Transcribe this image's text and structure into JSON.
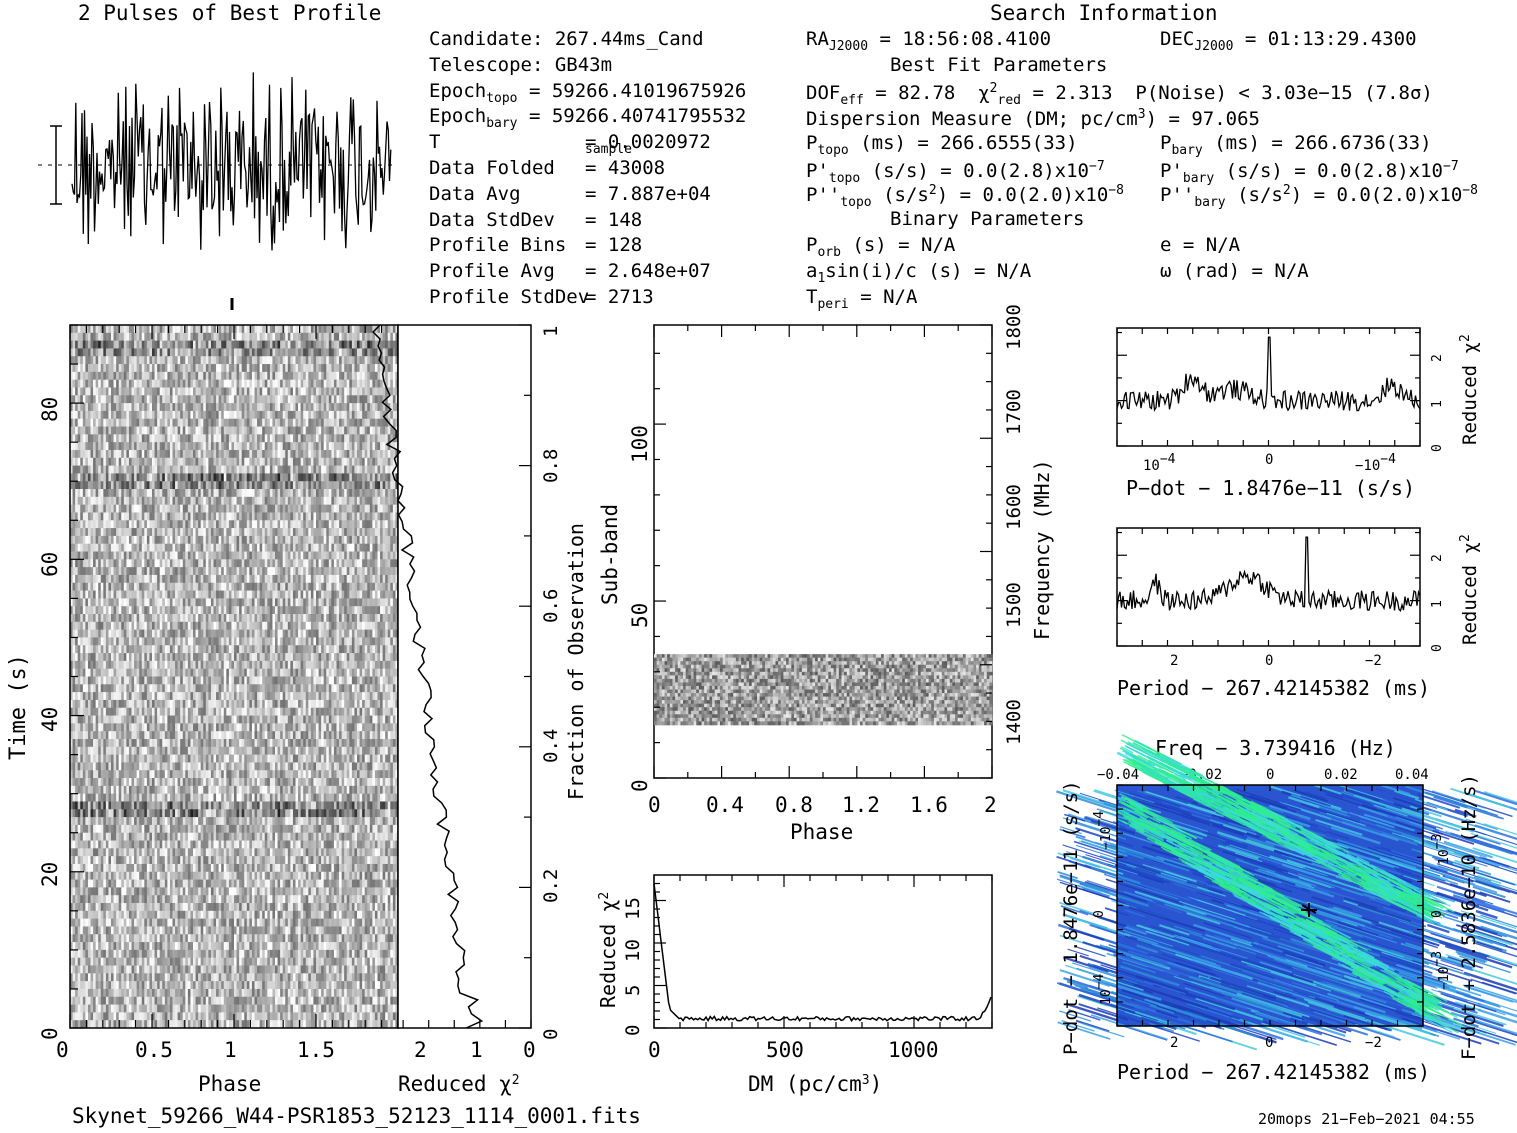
{
  "title_profile": "2 Pulses of Best Profile",
  "title_search": "Search Information",
  "candidate": {
    "rows": [
      {
        "label": "Candidate:",
        "value": "267.44ms_Cand"
      },
      {
        "label": "Telescope:",
        "value": "GB43m"
      },
      {
        "label": "Epoch",
        "sub": "topo",
        "value": "= 59266.41019675926"
      },
      {
        "label": "Epoch",
        "sub": "bary",
        "value": "= 59266.40741795532"
      },
      {
        "label": "T",
        "sub": "sample",
        "value": "=  0.0020972"
      },
      {
        "label": "Data Folded",
        "value": "=  43008"
      },
      {
        "label": "Data Avg",
        "value": "=  7.887e+04"
      },
      {
        "label": "Data StdDev",
        "value": "=  148"
      },
      {
        "label": "Profile Bins",
        "value": "=  128"
      },
      {
        "label": "Profile Avg",
        "value": "=  2.648e+07"
      },
      {
        "label": "Profile StdDev",
        "value": "=  2713"
      }
    ]
  },
  "search_info": {
    "ra": "= 18:56:08.4100",
    "dec": "= 01:13:29.4300",
    "best_fit_header": "Best Fit Parameters",
    "dof": "DOF",
    "dof_val": "= 82.78",
    "chi2_val": "= 2.313",
    "pnoise": "P(Noise) < 3.03e−15  (7.8σ)",
    "dm": "Dispersion Measure (DM; pc/cm",
    "dm_val": ") = 97.065",
    "ptopo": "(ms) =  266.6555(33)",
    "pbary": "(ms) =  266.6736(33)",
    "pdtopo": "(s/s) = 0.0(2.8)x10",
    "pdbary": "(s/s) = 0.0(2.8)x10",
    "pdexp": "−7",
    "pddtopo": "(s/s",
    "pddtopo2": ") = 0.0(2.0)x10",
    "pddexp": "−8",
    "binary_header": "Binary Parameters",
    "porb": "(s) = N/A",
    "a1": "sin(i)/c (s) = N/A",
    "tperi": "= N/A",
    "e": "e = N/A",
    "omega": "ω (rad) = N/A"
  },
  "axes": {
    "time_label": "Time (s)",
    "phase_label": "Phase",
    "redchi_label": "Reduced χ",
    "frac_label": "Fraction of Observation",
    "subband_label": "Sub-band",
    "freq_label": "Frequency (MHz)",
    "dm_label": "DM (pc/cm",
    "pdot_label": "P−dot − 1.8476e−11 (s/s)",
    "period_label": "Period − 267.42145382 (ms)",
    "freq_top": "Freq − 3.739416 (Hz)",
    "pdot_side": "P−dot − 1.8476e−11 (s/s)",
    "fdot_side": "F−dot + 2.5836e−10 (Hz/s)"
  },
  "footer": {
    "filename": "Skynet_59266_W44-PSR1853_52123_1114_0001.fits",
    "stamp": "20mops 21−Feb−2021 04:55"
  },
  "chart_data": [
    {
      "type": "line",
      "title": "2 Pulses of Best Profile",
      "x": "phase 0-2",
      "note": "noisy profile"
    },
    {
      "type": "heatmap",
      "name": "time-phase",
      "xlabel": "Phase",
      "ylabel": "Time (s)",
      "xlim": [
        0,
        2
      ],
      "ylim": [
        0,
        90
      ],
      "xticks": [
        "0",
        "0.5",
        "1",
        "1.5"
      ],
      "yticks": [
        "0",
        "20",
        "40",
        "60",
        "80"
      ]
    },
    {
      "type": "line",
      "name": "reduced-chi2-vs-time",
      "xlabel": "Reduced χ²",
      "xticks": [
        "2",
        "1",
        "0"
      ],
      "yticks_right": [
        "0",
        "0.2",
        "0.4",
        "0.6",
        "0.8",
        "1"
      ],
      "ylabel_right": "Fraction of Observation"
    },
    {
      "type": "heatmap",
      "name": "subband-phase",
      "xlabel": "Phase",
      "ylabel": "Sub-band",
      "xlim": [
        0,
        2
      ],
      "ylim": [
        0,
        128
      ],
      "xticks": [
        "0",
        "0.4",
        "0.8",
        "1.2",
        "1.6",
        "2"
      ],
      "yticks": [
        "0",
        "50",
        "100"
      ],
      "right_ticks": [
        "1400",
        "1500",
        "1600",
        "1700",
        "1800"
      ],
      "band_subbands": [
        15,
        35
      ]
    },
    {
      "type": "line",
      "name": "dm-curve",
      "xlabel": "DM (pc/cm³)",
      "ylabel": "Reduced χ²",
      "xticks": [
        "0",
        "500",
        "1000"
      ],
      "yticks": [
        "0",
        "5",
        "10",
        "15"
      ],
      "xlim": [
        0,
        1300
      ],
      "ylim": [
        0,
        18
      ]
    },
    {
      "type": "line",
      "name": "pdot-curve",
      "xlabel": "P−dot − 1.8476e−11 (s/s)",
      "ylabel": "Reduced χ²",
      "xticks": [
        "10⁻⁴",
        "0",
        "−10⁻⁴"
      ],
      "yticks": [
        "0",
        "1",
        "2"
      ]
    },
    {
      "type": "line",
      "name": "period-curve",
      "xlabel": "Period − 267.42145382 (ms)",
      "ylabel": "Reduced χ²",
      "xticks": [
        "2",
        "0",
        "−2"
      ],
      "yticks": [
        "0",
        "1",
        "2"
      ]
    },
    {
      "type": "heatmap",
      "name": "period-pdot",
      "xticks": [
        "2",
        "0",
        "−2"
      ],
      "top_ticks": [
        "−0.04",
        "−0.02",
        "0",
        "0.02",
        "0.04"
      ],
      "left_ticks": [
        "−10⁻⁴",
        "0",
        "10⁻⁴"
      ],
      "right_ticks": [
        "10⁻³",
        "0",
        "−10⁻³"
      ]
    }
  ]
}
